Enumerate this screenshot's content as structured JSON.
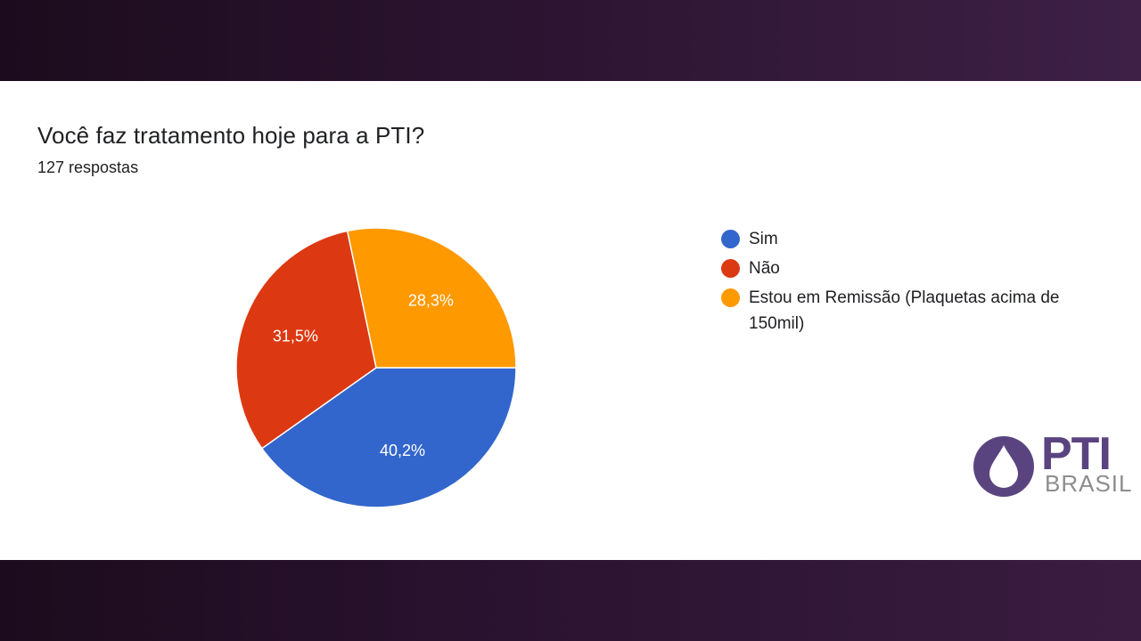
{
  "slide": {
    "title": "Você faz tratamento hoje para a PTI?",
    "subtitle": "127 respostas"
  },
  "legend": [
    {
      "label": "Sim",
      "color": "#3366cc"
    },
    {
      "label": "Não",
      "color": "#dc3912"
    },
    {
      "label": "Estou em Remissão (Plaquetas acima de 150mil)",
      "color": "#ff9900"
    }
  ],
  "logo": {
    "primary": "PTI",
    "secondary": "BRASIL",
    "icon": "drop-icon",
    "color": "#5a4480"
  },
  "chart_data": {
    "type": "pie",
    "title": "Você faz tratamento hoje para a PTI?",
    "subtitle": "127 respostas",
    "categories": [
      "Sim",
      "Não",
      "Estou em Remissão (Plaquetas acima de 150mil)"
    ],
    "values": [
      40.2,
      31.5,
      28.3
    ],
    "labels": [
      "40,2%",
      "31,5%",
      "28,3%"
    ],
    "colors": [
      "#3366cc",
      "#dc3912",
      "#ff9900"
    ],
    "legend_position": "right",
    "total_responses": 127
  }
}
